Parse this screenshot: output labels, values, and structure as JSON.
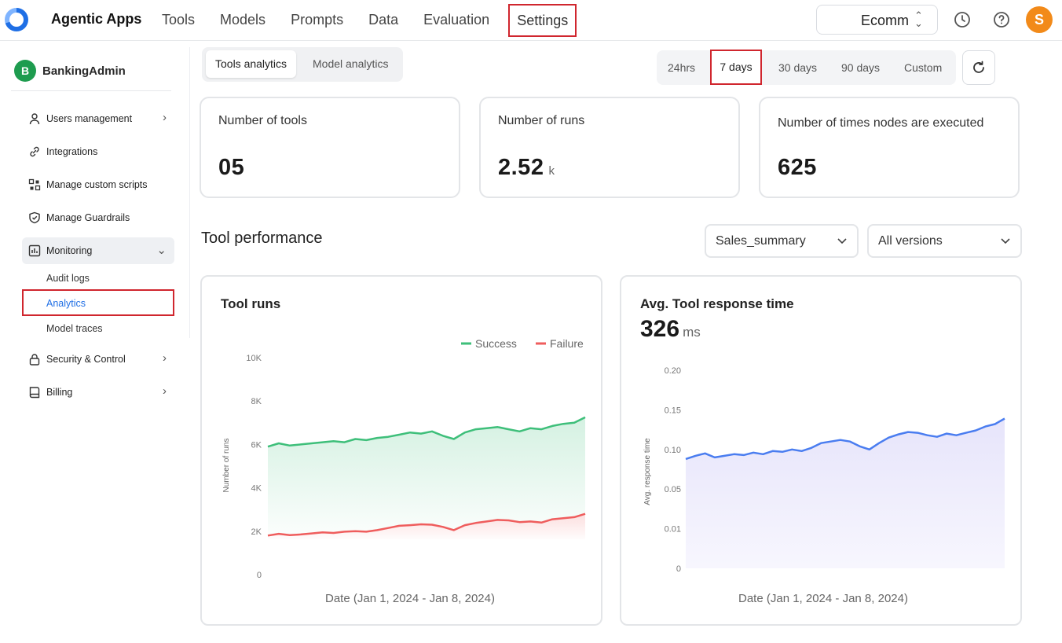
{
  "app": {
    "brand": "Agentic Apps"
  },
  "nav": {
    "items": [
      "Tools",
      "Models",
      "Prompts",
      "Data",
      "Evaluation"
    ],
    "active": "Settings"
  },
  "tenant": {
    "label": "Ecomm"
  },
  "user": {
    "initial": "S",
    "avatar_color": "#f28a19"
  },
  "sidebar": {
    "org": {
      "initial": "B",
      "name": "BankingAdmin"
    },
    "items": [
      {
        "label": "Users management",
        "icon": "user-icon",
        "chevron": ">"
      },
      {
        "label": "Integrations",
        "icon": "link-icon"
      },
      {
        "label": "Manage custom scripts",
        "icon": "scripts-icon"
      },
      {
        "label": "Manage Guardrails",
        "icon": "shield-icon"
      },
      {
        "label": "Monitoring",
        "icon": "chart-icon",
        "chevron": "v"
      },
      {
        "label": "Security & Control",
        "icon": "lock-icon",
        "chevron": ">"
      },
      {
        "label": "Billing",
        "icon": "book-icon",
        "chevron": ">"
      }
    ],
    "monitoring_sub": [
      "Audit logs",
      "Analytics",
      "Model traces"
    ]
  },
  "tabs": {
    "tools": "Tools analytics",
    "models": "Model analytics"
  },
  "range": {
    "h24": "24hrs",
    "d7": "7 days",
    "d30": "30 days",
    "d90": "90 days",
    "custom": "Custom"
  },
  "kpis": {
    "tools": {
      "title": "Number of tools",
      "value": "05"
    },
    "runs": {
      "title": "Number of runs",
      "value": "2.52",
      "unit": "k"
    },
    "nodes": {
      "title": "Number of times nodes are executed",
      "value": "625"
    }
  },
  "performance": {
    "title": "Tool performance",
    "tool_select": "Sales_summary",
    "version_select": "All versions"
  },
  "tool_runs": {
    "title": "Tool runs",
    "legend": {
      "success": "Success",
      "failure": "Failure"
    },
    "ylabel": "Number of runs",
    "xlabel": "Date (Jan 1, 2024 - Jan 8, 2024)",
    "yticks": [
      "10K",
      "8K",
      "6K",
      "4K",
      "2K",
      "0"
    ]
  },
  "response_time": {
    "title": "Avg. Tool response time",
    "value": "326",
    "unit": "ms",
    "ylabel": "Avg. response time",
    "xlabel": "Date (Jan 1, 2024 - Jan 8, 2024)",
    "yticks": [
      "0.20",
      "0.15",
      "0.10",
      "0.05",
      "0.01",
      "0"
    ]
  },
  "colors": {
    "success": "#3ebf7a",
    "failure": "#ef5d5d",
    "response": "#4a7df0",
    "accent_red": "#d0262e"
  },
  "chart_data": [
    {
      "type": "line",
      "title": "Tool runs",
      "xlabel": "Date (Jan 1, 2024 - Jan 8, 2024)",
      "ylabel": "Number of runs",
      "ylim": [
        0,
        10000
      ],
      "series": [
        {
          "name": "Success",
          "values": [
            5900,
            6050,
            5950,
            6000,
            6050,
            6100,
            6150,
            6100,
            6250,
            6200,
            6300,
            6350,
            6450,
            6550,
            6500,
            6600,
            6400,
            6250,
            6550,
            6700,
            6750,
            6800,
            6700,
            6600,
            6750,
            6700,
            6850,
            6950,
            7000,
            7250
          ]
        },
        {
          "name": "Failure",
          "values": [
            1800,
            1880,
            1820,
            1850,
            1900,
            1950,
            1920,
            1980,
            2000,
            1980,
            2050,
            2150,
            2250,
            2280,
            2320,
            2300,
            2200,
            2050,
            2280,
            2380,
            2450,
            2520,
            2500,
            2420,
            2450,
            2400,
            2550,
            2600,
            2650,
            2800
          ]
        }
      ]
    },
    {
      "type": "area",
      "title": "Avg. Tool response time",
      "xlabel": "Date (Jan 1, 2024 - Jan 8, 2024)",
      "ylabel": "Avg. response time",
      "yticks": [
        0,
        0.01,
        0.05,
        0.1,
        0.15,
        0.2
      ],
      "series": [
        {
          "name": "",
          "values": [
            0.088,
            0.092,
            0.095,
            0.09,
            0.092,
            0.094,
            0.093,
            0.096,
            0.094,
            0.098,
            0.097,
            0.1,
            0.098,
            0.102,
            0.108,
            0.11,
            0.112,
            0.11,
            0.104,
            0.1,
            0.108,
            0.115,
            0.119,
            0.122,
            0.121,
            0.118,
            0.116,
            0.12,
            0.118,
            0.121,
            0.124,
            0.129,
            0.132,
            0.139
          ]
        }
      ]
    }
  ]
}
